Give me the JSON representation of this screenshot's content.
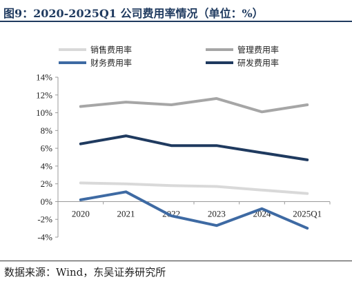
{
  "title": "图9：2020-2025Q1 公司费用率情况（单位：%）",
  "source": "数据来源：Wind，东吴证券研究所",
  "chart_data": {
    "type": "line",
    "categories": [
      "2020",
      "2021",
      "2022",
      "2023",
      "2024",
      "2025Q1"
    ],
    "ylim": [
      -4,
      14
    ],
    "yticks": [
      "-4%",
      "-2%",
      "0%",
      "2%",
      "4%",
      "6%",
      "8%",
      "10%",
      "12%",
      "14%"
    ],
    "ytick_values": [
      -4,
      -2,
      0,
      2,
      4,
      6,
      8,
      10,
      12,
      14
    ],
    "grid": false,
    "legend_position": "top",
    "series": [
      {
        "name": "销售费用率",
        "color": "#d9d9d9",
        "values": [
          2.1,
          2.0,
          1.8,
          1.7,
          1.3,
          0.9
        ]
      },
      {
        "name": "管理费用率",
        "color": "#a6a6a6",
        "values": [
          10.7,
          11.2,
          10.9,
          11.6,
          10.1,
          10.9
        ]
      },
      {
        "name": "财务费用率",
        "color": "#3e6aa3",
        "values": [
          0.2,
          1.1,
          -1.6,
          -2.7,
          -0.8,
          -3.0
        ]
      },
      {
        "name": "研发费用率",
        "color": "#1f3a5f",
        "values": [
          6.5,
          7.4,
          6.3,
          6.3,
          5.5,
          4.7
        ]
      }
    ]
  }
}
